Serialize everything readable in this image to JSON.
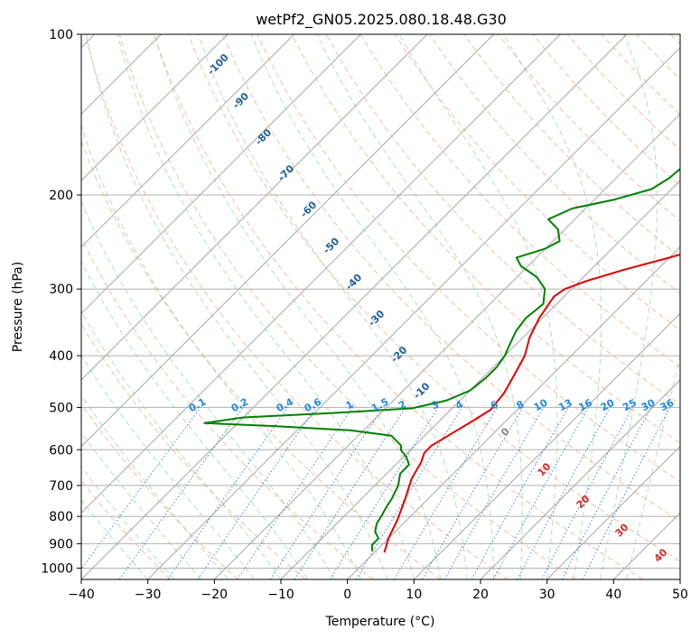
{
  "chart_data": {
    "type": "line",
    "subtype": "skew-t log-p sounding",
    "title": "wetPf2_GN05.2025.080.18.48.G30",
    "xlabel": "Temperature (°C)",
    "ylabel": "Pressure (hPa)",
    "xlim": [
      -40,
      50
    ],
    "ylim": [
      1050,
      100
    ],
    "y_scale": "log",
    "x_ticks": [
      -40,
      -30,
      -20,
      -10,
      0,
      10,
      20,
      30,
      40,
      50
    ],
    "y_ticks": [
      1000,
      900,
      800,
      700,
      600,
      500,
      400,
      300,
      200,
      100
    ],
    "grid": true,
    "series": [
      {
        "color": "#e00000",
        "points": [
          [
            1.5,
            935
          ],
          [
            0,
            880
          ],
          [
            -1.5,
            810
          ],
          [
            -3.5,
            740
          ],
          [
            -5.5,
            680
          ],
          [
            -6.5,
            635
          ],
          [
            -7.5,
            608
          ],
          [
            -7.5,
            590
          ],
          [
            -6.5,
            565
          ],
          [
            -5,
            530
          ],
          [
            -4,
            505
          ],
          [
            -4.5,
            470
          ],
          [
            -5.5,
            440
          ],
          [
            -7,
            400
          ],
          [
            -9,
            370
          ],
          [
            -10.5,
            340
          ],
          [
            -11.5,
            310
          ],
          [
            -11,
            300
          ],
          [
            -9,
            290
          ],
          [
            -5,
            276
          ],
          [
            0,
            262
          ],
          [
            3,
            253
          ],
          [
            6,
            240
          ],
          [
            8,
            225
          ],
          [
            10,
            210
          ],
          [
            12,
            195
          ],
          [
            14,
            182
          ],
          [
            16,
            172
          ],
          [
            19,
            160
          ],
          [
            21,
            150
          ],
          [
            23,
            141
          ],
          [
            25,
            132
          ],
          [
            27,
            123
          ],
          [
            29,
            115
          ],
          [
            31,
            108
          ],
          [
            33,
            100
          ]
        ]
      },
      {
        "color": "#008000",
        "points": [
          [
            -0.5,
            930
          ],
          [
            -1.5,
            905
          ],
          [
            -1.5,
            880
          ],
          [
            -3,
            855
          ],
          [
            -4,
            825
          ],
          [
            -4.5,
            795
          ],
          [
            -5,
            770
          ],
          [
            -5.5,
            740
          ],
          [
            -6.5,
            700
          ],
          [
            -8,
            665
          ],
          [
            -8,
            640
          ],
          [
            -9.5,
            620
          ],
          [
            -11.5,
            600
          ],
          [
            -12,
            590
          ],
          [
            -15,
            565
          ],
          [
            -22,
            552
          ],
          [
            -34,
            542
          ],
          [
            -45,
            535
          ],
          [
            -40,
            522
          ],
          [
            -27,
            512
          ],
          [
            -16,
            502
          ],
          [
            -12,
            485
          ],
          [
            -10,
            465
          ],
          [
            -9.5,
            440
          ],
          [
            -9.5,
            420
          ],
          [
            -10,
            400
          ],
          [
            -11,
            380
          ],
          [
            -12,
            360
          ],
          [
            -12.5,
            340
          ],
          [
            -12,
            320
          ],
          [
            -14,
            300
          ],
          [
            -17,
            285
          ],
          [
            -21,
            272
          ],
          [
            -23,
            262
          ],
          [
            -20,
            252
          ],
          [
            -19,
            244
          ],
          [
            -21,
            232
          ],
          [
            -24,
            222
          ],
          [
            -22,
            212
          ],
          [
            -17,
            204
          ],
          [
            -13,
            195
          ],
          [
            -12,
            186
          ],
          [
            -11.5,
            172
          ],
          [
            -10,
            165
          ],
          [
            -10,
            155
          ],
          [
            -9.5,
            146
          ],
          [
            -7,
            138
          ],
          [
            -6.5,
            131
          ],
          [
            -6,
            124
          ],
          [
            -5,
            116
          ],
          [
            -3.5,
            109
          ],
          [
            0,
            100
          ]
        ]
      }
    ],
    "dry_adiabat_labels": [
      "-100",
      "-90",
      "-80",
      "-70",
      "-60",
      "-50",
      "-40",
      "-30",
      "-20",
      "-10"
    ],
    "moist_adiabat_labels": [
      "0",
      "10",
      "20",
      "30",
      "40"
    ],
    "mixing_ratio_labels": [
      "0.1",
      "0.2",
      "0.4",
      "0.6",
      "1",
      "1.5",
      "2",
      "3",
      "4",
      "6",
      "8",
      "10",
      "13",
      "16",
      "20",
      "25",
      "30",
      "36"
    ]
  }
}
